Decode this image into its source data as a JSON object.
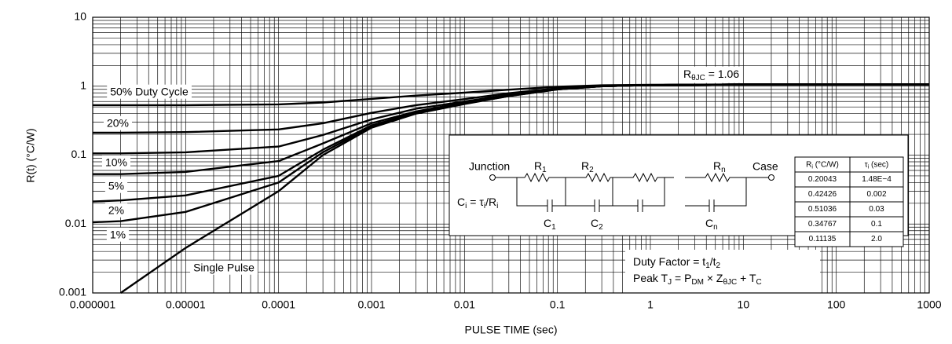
{
  "chart_data": {
    "type": "line",
    "x_label": "PULSE TIME (sec)",
    "y_label": "R(t) (°C/W)",
    "log_x": true,
    "log_y": true,
    "grid": true,
    "xlim": [
      1e-06,
      1000
    ],
    "ylim": [
      0.001,
      10
    ],
    "xticks": [
      1e-06,
      1e-05,
      0.0001,
      0.001,
      0.01,
      0.1,
      1,
      10,
      100,
      1000
    ],
    "yticks": [
      0.001,
      0.01,
      0.1,
      1,
      10
    ],
    "x": [
      1e-06,
      2e-06,
      1e-05,
      0.0001,
      0.0003,
      0.001,
      0.003,
      0.01,
      0.03,
      0.1,
      0.3,
      1,
      10,
      1000
    ],
    "series": [
      {
        "name": "50% Duty Cycle",
        "color": "#000000",
        "values": [
          0.53,
          0.53,
          0.53,
          0.545,
          0.58,
          0.655,
          0.73,
          0.805,
          0.89,
          0.98,
          1.03,
          1.05,
          1.06,
          1.06
        ]
      },
      {
        "name": "20%",
        "color": "#000000",
        "values": [
          0.212,
          0.212,
          0.216,
          0.236,
          0.29,
          0.41,
          0.53,
          0.65,
          0.79,
          0.93,
          1.01,
          1.04,
          1.06,
          1.06
        ]
      },
      {
        "name": "10%",
        "color": "#000000",
        "values": [
          0.106,
          0.106,
          0.11,
          0.133,
          0.196,
          0.33,
          0.47,
          0.6,
          0.75,
          0.92,
          1.0,
          1.04,
          1.06,
          1.06
        ]
      },
      {
        "name": "5%",
        "color": "#000000",
        "values": [
          0.053,
          0.053,
          0.057,
          0.082,
          0.148,
          0.29,
          0.43,
          0.58,
          0.74,
          0.91,
          1.0,
          1.04,
          1.06,
          1.06
        ]
      },
      {
        "name": "2%",
        "color": "#000000",
        "values": [
          0.0212,
          0.022,
          0.026,
          0.05,
          0.12,
          0.27,
          0.41,
          0.56,
          0.73,
          0.9,
          1.0,
          1.04,
          1.06,
          1.06
        ]
      },
      {
        "name": "1%",
        "color": "#000000",
        "values": [
          0.0106,
          0.011,
          0.015,
          0.04,
          0.11,
          0.26,
          0.41,
          0.56,
          0.72,
          0.9,
          1.0,
          1.04,
          1.06,
          1.06
        ]
      },
      {
        "name": "Single Pulse",
        "color": "#000000",
        "values": [
          null,
          0.001,
          0.0045,
          0.03,
          0.1,
          0.25,
          0.4,
          0.55,
          0.72,
          0.9,
          1.0,
          1.04,
          1.06,
          1.06
        ]
      }
    ],
    "annotation": [
      "R",
      "θJC",
      " = 1.06"
    ]
  },
  "inset": {
    "junction": "Junction",
    "case": "Case",
    "resistors": [
      [
        "R",
        "1"
      ],
      [
        "R",
        "2"
      ],
      [
        "R",
        "n"
      ]
    ],
    "capacitors": [
      [
        "C",
        "1"
      ],
      [
        "C",
        "2"
      ],
      [
        "C",
        "n"
      ]
    ],
    "formula": [
      "C",
      "i",
      " = τ",
      "i",
      "/R",
      "i"
    ],
    "table": {
      "header": [
        [
          "R",
          "i",
          " (°C/W)"
        ],
        [
          "τ",
          "i",
          " (sec)"
        ]
      ],
      "rows": [
        [
          "0.20043",
          "1.48E−4"
        ],
        [
          "0.42426",
          "0.002"
        ],
        [
          "0.51036",
          "0.03"
        ],
        [
          "0.34767",
          "0.1"
        ],
        [
          "0.11135",
          "2.0"
        ]
      ]
    }
  },
  "notes": [
    [
      "Duty Factor = t",
      "1",
      "/t",
      "2"
    ],
    [
      "Peak T",
      "J",
      " = P",
      "DM",
      " × Z",
      "θJC",
      " + T",
      "C"
    ]
  ]
}
